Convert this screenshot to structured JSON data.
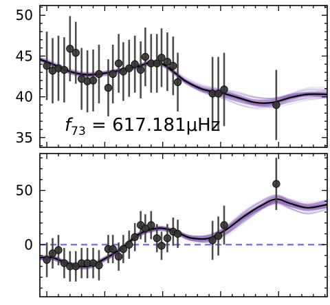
{
  "chart_data": [
    {
      "type": "scatter",
      "annotation": {
        "prefix": "f",
        "subscript": "73",
        "text": " = 617.181μHz"
      },
      "yticks": [
        35,
        40,
        45,
        50
      ],
      "ylim": [
        33.8,
        51.2
      ],
      "xlim": [
        -0.6,
        24.2
      ],
      "grid": false,
      "series": [
        {
          "kind": "fit_samples",
          "color": "#8a63b8",
          "opacity": 0.18
        },
        {
          "kind": "fit_median",
          "color": "#000000"
        },
        {
          "kind": "data",
          "color": "#333333",
          "points": [
            {
              "x": 0.0,
              "y": 43.8,
              "err": 4.2
            },
            {
              "x": 0.5,
              "y": 43.2,
              "err": 4.0
            },
            {
              "x": 1.0,
              "y": 43.5,
              "err": 4.0
            },
            {
              "x": 1.5,
              "y": 43.3,
              "err": 4.0
            },
            {
              "x": 2.0,
              "y": 45.9,
              "err": 4.0
            },
            {
              "x": 2.5,
              "y": 45.4,
              "err": 3.8
            },
            {
              "x": 3.0,
              "y": 42.2,
              "err": 3.8
            },
            {
              "x": 3.5,
              "y": 41.9,
              "err": 3.8
            },
            {
              "x": 4.0,
              "y": 42.0,
              "err": 3.8
            },
            {
              "x": 4.5,
              "y": 42.8,
              "err": 3.6
            },
            {
              "x": 5.3,
              "y": 41.1,
              "err": 3.5
            },
            {
              "x": 5.7,
              "y": 42.8,
              "err": 3.6
            },
            {
              "x": 6.2,
              "y": 44.1,
              "err": 3.6
            },
            {
              "x": 6.6,
              "y": 43.1,
              "err": 3.6
            },
            {
              "x": 7.1,
              "y": 43.5,
              "err": 3.5
            },
            {
              "x": 7.6,
              "y": 44.0,
              "err": 3.5
            },
            {
              "x": 8.1,
              "y": 43.3,
              "err": 3.5
            },
            {
              "x": 8.5,
              "y": 44.9,
              "err": 3.6
            },
            {
              "x": 9.0,
              "y": 44.1,
              "err": 3.6
            },
            {
              "x": 9.5,
              "y": 44.1,
              "err": 3.6
            },
            {
              "x": 9.9,
              "y": 44.8,
              "err": 3.6
            },
            {
              "x": 10.4,
              "y": 44.3,
              "err": 3.6
            },
            {
              "x": 10.9,
              "y": 43.8,
              "err": 3.6
            },
            {
              "x": 11.3,
              "y": 41.8,
              "err": 3.6
            },
            {
              "x": 14.3,
              "y": 40.4,
              "err": 4.5
            },
            {
              "x": 14.8,
              "y": 40.4,
              "err": 4.5
            },
            {
              "x": 15.3,
              "y": 40.9,
              "err": 4.5
            },
            {
              "x": 19.8,
              "y": 39.0,
              "err": 4.3
            }
          ]
        }
      ]
    },
    {
      "type": "scatter",
      "yticks": [
        0,
        50
      ],
      "ylim": [
        -48,
        84
      ],
      "xlim": [
        -0.6,
        24.2
      ],
      "grid": false,
      "reference_line": {
        "y": 0,
        "color": "#6b6be6",
        "style": "dashed"
      },
      "series": [
        {
          "kind": "fit_samples",
          "color": "#8a63b8",
          "opacity": 0.18
        },
        {
          "kind": "fit_median",
          "color": "#000000"
        },
        {
          "kind": "data",
          "color": "#333333",
          "points": [
            {
              "x": 0.0,
              "y": -14,
              "err": 16
            },
            {
              "x": 0.5,
              "y": -8,
              "err": 14
            },
            {
              "x": 1.0,
              "y": -5,
              "err": 14
            },
            {
              "x": 1.5,
              "y": -17,
              "err": 14
            },
            {
              "x": 2.0,
              "y": -20,
              "err": 14
            },
            {
              "x": 2.5,
              "y": -20,
              "err": 14
            },
            {
              "x": 3.0,
              "y": -17,
              "err": 14
            },
            {
              "x": 3.5,
              "y": -17,
              "err": 14
            },
            {
              "x": 4.0,
              "y": -17,
              "err": 14
            },
            {
              "x": 4.5,
              "y": -19,
              "err": 14
            },
            {
              "x": 5.3,
              "y": -4,
              "err": 13
            },
            {
              "x": 5.7,
              "y": -4,
              "err": 13
            },
            {
              "x": 6.2,
              "y": -11,
              "err": 13
            },
            {
              "x": 6.6,
              "y": -4,
              "err": 13
            },
            {
              "x": 7.1,
              "y": 0,
              "err": 13
            },
            {
              "x": 7.6,
              "y": 7,
              "err": 13
            },
            {
              "x": 8.1,
              "y": 18,
              "err": 13
            },
            {
              "x": 8.5,
              "y": 15,
              "err": 13
            },
            {
              "x": 9.0,
              "y": 18,
              "err": 13
            },
            {
              "x": 9.5,
              "y": 6,
              "err": 13
            },
            {
              "x": 9.9,
              "y": -1,
              "err": 13
            },
            {
              "x": 10.4,
              "y": 6,
              "err": 13
            },
            {
              "x": 10.9,
              "y": 12,
              "err": 13
            },
            {
              "x": 11.3,
              "y": 10,
              "err": 13
            },
            {
              "x": 14.3,
              "y": 4,
              "err": 18
            },
            {
              "x": 14.8,
              "y": 8,
              "err": 18
            },
            {
              "x": 15.3,
              "y": 18,
              "err": 18
            },
            {
              "x": 19.8,
              "y": 56,
              "err": 24
            }
          ]
        }
      ]
    }
  ]
}
